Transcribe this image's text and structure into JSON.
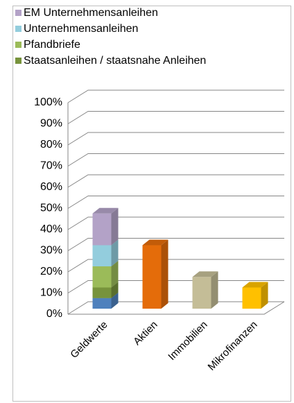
{
  "chart_data": {
    "type": "bar3d_stacked",
    "categories": [
      "Geldwerte",
      "Aktien",
      "Immobilien",
      "Mikrofinanzen"
    ],
    "series": [
      {
        "name": null,
        "color": "#4f81bd",
        "values": [
          5,
          null,
          null,
          null
        ]
      },
      {
        "name": "Staatsanleihen / staatsnahe Anleihen",
        "color": "#77933c",
        "values": [
          5,
          null,
          null,
          null
        ]
      },
      {
        "name": "Pfandbriefe",
        "color": "#9bbb59",
        "values": [
          10,
          null,
          null,
          null
        ]
      },
      {
        "name": "Unternehmensanleihen",
        "color": "#93cddd",
        "values": [
          10,
          null,
          null,
          null
        ]
      },
      {
        "name": "EM Unternehmensanleihen",
        "color": "#b3a2c7",
        "values": [
          15,
          null,
          null,
          null
        ]
      },
      {
        "name": null,
        "color": "#e46c0a",
        "values": [
          null,
          30,
          null,
          null
        ]
      },
      {
        "name": null,
        "color": "#c4bd97",
        "values": [
          null,
          null,
          15,
          null
        ]
      },
      {
        "name": null,
        "color": "#ffc000",
        "values": [
          null,
          null,
          null,
          10
        ]
      }
    ],
    "ylim": [
      0,
      100
    ],
    "yticks": [
      {
        "value": 0,
        "label": "0%"
      },
      {
        "value": 10,
        "label": "10%"
      },
      {
        "value": 20,
        "label": "20%"
      },
      {
        "value": 30,
        "label": "30%"
      },
      {
        "value": 40,
        "label": "40%"
      },
      {
        "value": 50,
        "label": "50%"
      },
      {
        "value": 60,
        "label": "60%"
      },
      {
        "value": 70,
        "label": "70%"
      },
      {
        "value": 80,
        "label": "80%"
      },
      {
        "value": 90,
        "label": "90%"
      },
      {
        "value": 100,
        "label": "100%"
      }
    ],
    "grid": true
  }
}
